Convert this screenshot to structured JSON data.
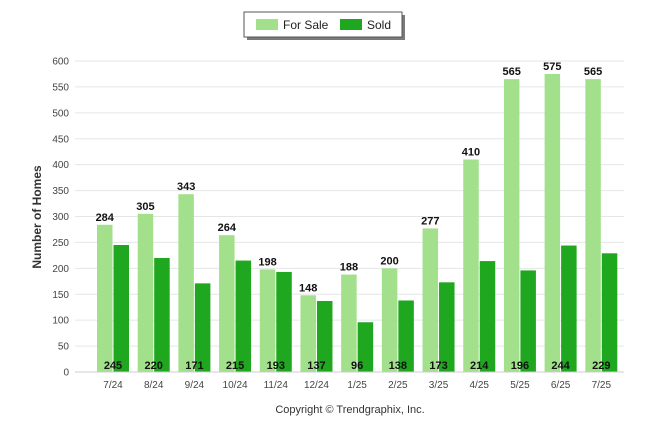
{
  "chart_data": {
    "type": "bar",
    "categories": [
      "7/24",
      "8/24",
      "9/24",
      "10/24",
      "11/24",
      "12/24",
      "1/25",
      "2/25",
      "3/25",
      "4/25",
      "5/25",
      "6/25",
      "7/25"
    ],
    "series": [
      {
        "name": "For Sale",
        "color": "#a3e08c",
        "values": [
          284,
          305,
          343,
          264,
          198,
          148,
          188,
          200,
          277,
          410,
          565,
          575,
          565
        ]
      },
      {
        "name": "Sold",
        "color": "#1fa81f",
        "values": [
          245,
          220,
          171,
          215,
          193,
          137,
          96,
          138,
          173,
          214,
          196,
          244,
          229
        ]
      }
    ],
    "ylabel": "Number of Homes",
    "ylim": [
      0,
      600
    ],
    "yticks": [
      0,
      50,
      100,
      150,
      200,
      250,
      300,
      350,
      400,
      450,
      500,
      550,
      600
    ],
    "grid": true,
    "legend_position": "top-center"
  },
  "legend": {
    "for_sale_label": "For Sale",
    "sold_label": "Sold"
  },
  "footer": {
    "copyright": "Copyright © Trendgraphix, Inc."
  }
}
